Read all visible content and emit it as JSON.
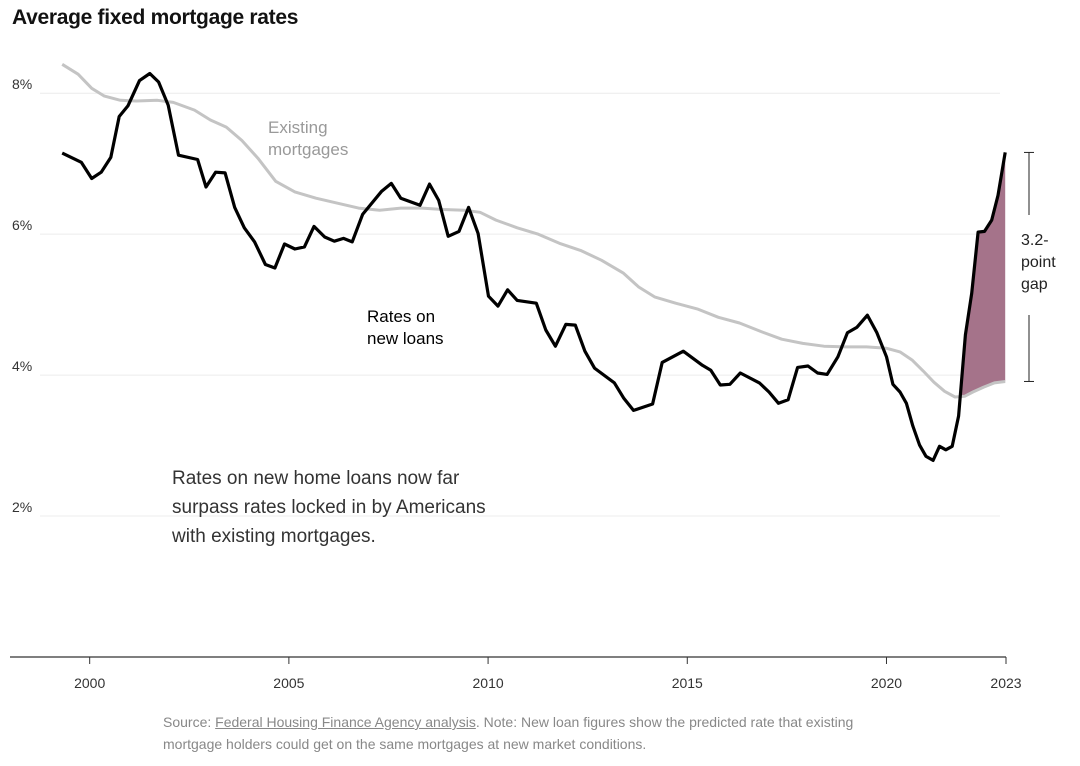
{
  "chart_data": {
    "type": "line",
    "title": "Average fixed mortgage rates",
    "xlim": [
      1998,
      2023
    ],
    "xticks": [
      2000,
      2005,
      2010,
      2015,
      2020,
      2023
    ],
    "ylim": [
      0,
      8.5
    ],
    "yticks": [
      {
        "value": 2,
        "label": "2%"
      },
      {
        "value": 4,
        "label": "4%"
      },
      {
        "value": 6,
        "label": "6%"
      },
      {
        "value": 8,
        "label": "8%"
      }
    ],
    "grid": true,
    "series": [
      {
        "name": "Existing mortgages",
        "color": "#c4c4c4",
        "x": [
          1999.31,
          1999.71,
          2000.05,
          2000.37,
          2000.77,
          2001.17,
          2001.7,
          2002.1,
          2002.63,
          2003.03,
          2003.43,
          2003.82,
          2004.22,
          2004.67,
          2005.15,
          2005.68,
          2006.22,
          2006.75,
          2007.28,
          2007.81,
          2008.34,
          2008.87,
          2009.4,
          2009.8,
          2010.2,
          2010.73,
          2011.26,
          2011.79,
          2012.32,
          2012.85,
          2013.39,
          2013.78,
          2014.18,
          2014.71,
          2015.25,
          2015.78,
          2016.31,
          2016.84,
          2017.37,
          2017.9,
          2018.43,
          2018.97,
          2019.5,
          2020.0,
          2020.34,
          2020.65,
          2020.92,
          2021.19,
          2021.46,
          2021.72,
          2021.96,
          2022.17,
          2022.44,
          2022.71,
          2022.98
        ],
        "values": [
          8.41,
          8.27,
          8.07,
          7.96,
          7.9,
          7.89,
          7.9,
          7.87,
          7.76,
          7.62,
          7.52,
          7.33,
          7.08,
          6.75,
          6.6,
          6.51,
          6.44,
          6.37,
          6.34,
          6.37,
          6.37,
          6.35,
          6.34,
          6.31,
          6.2,
          6.09,
          6.0,
          5.87,
          5.77,
          5.63,
          5.45,
          5.25,
          5.11,
          5.02,
          4.94,
          4.82,
          4.74,
          4.62,
          4.51,
          4.45,
          4.41,
          4.4,
          4.4,
          4.38,
          4.33,
          4.21,
          4.06,
          3.9,
          3.77,
          3.69,
          3.7,
          3.76,
          3.83,
          3.89,
          3.91
        ]
      },
      {
        "name": "Rates on new loans",
        "color": "#000000",
        "x": [
          1999.31,
          1999.79,
          2000.05,
          2000.29,
          2000.53,
          2000.74,
          2000.96,
          2001.25,
          2001.51,
          2001.73,
          2001.97,
          2002.23,
          2002.71,
          2002.92,
          2003.16,
          2003.4,
          2003.64,
          2003.88,
          2004.14,
          2004.41,
          2004.65,
          2004.89,
          2005.15,
          2005.39,
          2005.63,
          2005.9,
          2006.14,
          2006.37,
          2006.59,
          2006.85,
          2007.33,
          2007.57,
          2007.81,
          2008.29,
          2008.53,
          2008.76,
          2009.0,
          2009.27,
          2009.51,
          2009.75,
          2010.01,
          2010.25,
          2010.49,
          2010.73,
          2011.21,
          2011.45,
          2011.69,
          2011.95,
          2012.19,
          2012.43,
          2012.67,
          2013.17,
          2013.41,
          2013.65,
          2014.13,
          2014.37,
          2014.9,
          2015.38,
          2015.59,
          2015.83,
          2016.07,
          2016.33,
          2016.81,
          2017.05,
          2017.29,
          2017.53,
          2017.77,
          2018.03,
          2018.27,
          2018.51,
          2018.78,
          2019.02,
          2019.26,
          2019.52,
          2019.76,
          2020.0,
          2020.16,
          2020.34,
          2020.5,
          2020.66,
          2020.83,
          2020.99,
          2021.17,
          2021.33,
          2021.49,
          2021.65,
          2021.81,
          2021.98,
          2022.14,
          2022.3,
          2022.46,
          2022.64,
          2022.8,
          2022.98
        ],
        "values": [
          7.15,
          7.02,
          6.79,
          6.88,
          7.09,
          7.67,
          7.82,
          8.18,
          8.28,
          8.16,
          7.83,
          7.12,
          7.06,
          6.67,
          6.88,
          6.87,
          6.38,
          6.09,
          5.89,
          5.57,
          5.52,
          5.86,
          5.79,
          5.82,
          6.11,
          5.96,
          5.9,
          5.94,
          5.89,
          6.28,
          6.61,
          6.72,
          6.51,
          6.41,
          6.71,
          6.48,
          5.97,
          6.04,
          6.38,
          6.01,
          5.12,
          4.98,
          5.21,
          5.06,
          5.02,
          4.64,
          4.41,
          4.72,
          4.71,
          4.34,
          4.1,
          3.89,
          3.67,
          3.5,
          3.59,
          4.18,
          4.34,
          4.14,
          4.07,
          3.86,
          3.87,
          4.03,
          3.89,
          3.76,
          3.6,
          3.65,
          4.11,
          4.13,
          4.03,
          4.01,
          4.26,
          4.6,
          4.68,
          4.85,
          4.6,
          4.26,
          3.87,
          3.76,
          3.6,
          3.28,
          3.01,
          2.85,
          2.79,
          2.99,
          2.94,
          2.99,
          3.42,
          4.57,
          5.16,
          6.03,
          6.04,
          6.2,
          6.55,
          7.16
        ]
      }
    ],
    "gap_fill_color": "#a5738a",
    "annotations": {
      "gap": "3.2-point gap",
      "note": "Rates on new home loans now far surpass rates locked in by Americans with existing mortgages."
    },
    "source": {
      "label": "Source:",
      "link": "Federal Housing Finance Agency analysis",
      "note": ". Note: New loan figures show the predicted rate that existing mortgage holders could get on the same mortgages at new market conditions."
    }
  }
}
